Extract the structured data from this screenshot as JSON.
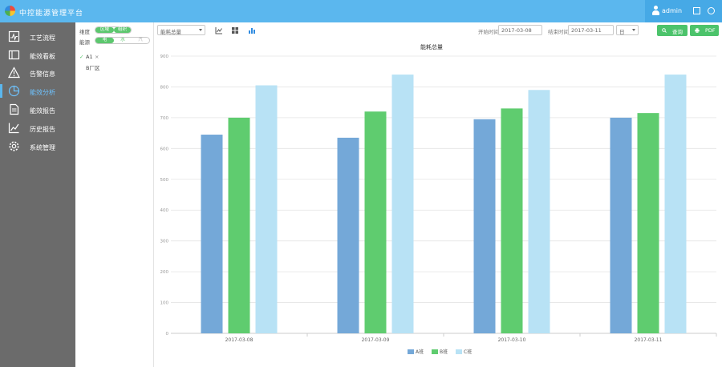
{
  "header": {
    "app_title": "中控能源管理平台",
    "user_name": "admin"
  },
  "sidebar": {
    "items": [
      {
        "label": "工艺流程",
        "icon": "process-flow-icon"
      },
      {
        "label": "能效看板",
        "icon": "dashboard-icon"
      },
      {
        "label": "告警信息",
        "icon": "warning-icon"
      },
      {
        "label": "能效分析",
        "icon": "pie-chart-icon",
        "active": true
      },
      {
        "label": "能效报告",
        "icon": "report-icon"
      },
      {
        "label": "历史报告",
        "icon": "trend-icon"
      },
      {
        "label": "系统管理",
        "icon": "gear-icon"
      }
    ]
  },
  "filters": {
    "scope_label": "维度",
    "scope_options": [
      "区域",
      "组织"
    ],
    "energy_label": "能源",
    "energy_options": [
      "电",
      "水",
      "汽"
    ],
    "tree": [
      "A1",
      "B厂区"
    ]
  },
  "toolbar": {
    "metric_select": "能耗总量",
    "start_label": "开始时间",
    "start_date": "2017-03-08",
    "end_label": "结束时间",
    "end_date": "2017-03-11",
    "period_select": "日",
    "query_label": "查询",
    "pdf_label": "PDF"
  },
  "colors": {
    "accent": "#5bb7ee",
    "sidebar": "#6b6b6b",
    "button": "#4cc36b"
  },
  "chart_data": {
    "type": "bar",
    "title": "能耗总量",
    "categories": [
      "2017-03-08",
      "2017-03-09",
      "2017-03-10",
      "2017-03-11"
    ],
    "series": [
      {
        "name": "A班",
        "color": "#74a8d8",
        "values": [
          645,
          635,
          695,
          700
        ]
      },
      {
        "name": "B班",
        "color": "#5fcc6f",
        "values": [
          700,
          720,
          730,
          715
        ]
      },
      {
        "name": "C班",
        "color": "#b8e2f5",
        "values": [
          805,
          840,
          790,
          840
        ]
      }
    ],
    "ylim": [
      0,
      900
    ],
    "yticks": [
      0,
      100,
      200,
      300,
      400,
      500,
      600,
      700,
      800,
      900
    ],
    "grid": true,
    "legend": "bottom"
  }
}
